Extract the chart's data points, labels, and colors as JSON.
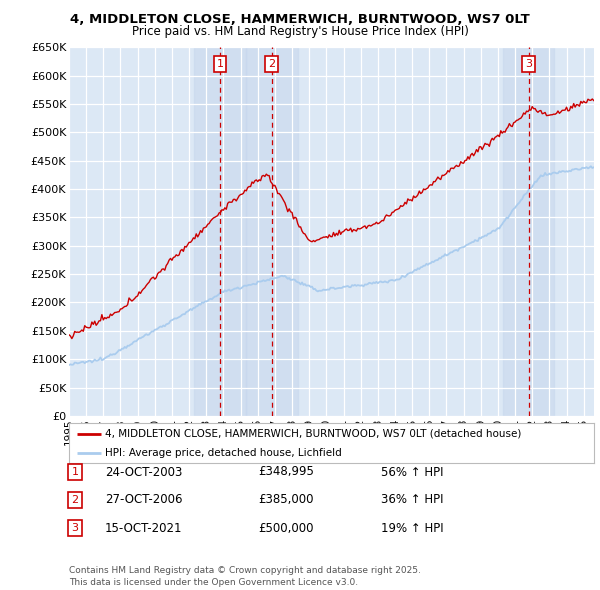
{
  "title_line1": "4, MIDDLETON CLOSE, HAMMERWICH, BURNTWOOD, WS7 0LT",
  "title_line2": "Price paid vs. HM Land Registry's House Price Index (HPI)",
  "ylim": [
    0,
    650000
  ],
  "yticks": [
    0,
    50000,
    100000,
    150000,
    200000,
    250000,
    300000,
    350000,
    400000,
    450000,
    500000,
    550000,
    600000,
    650000
  ],
  "ytick_labels": [
    "£0",
    "£50K",
    "£100K",
    "£150K",
    "£200K",
    "£250K",
    "£300K",
    "£350K",
    "£400K",
    "£450K",
    "£500K",
    "£550K",
    "£600K",
    "£650K"
  ],
  "xlim_start": 1995.0,
  "xlim_end": 2025.6,
  "sale_events": [
    {
      "num": 1,
      "date": "24-OCT-2003",
      "year": 2003.81,
      "price": 348995,
      "label": "£348,995",
      "pct": "56% ↑ HPI"
    },
    {
      "num": 2,
      "date": "27-OCT-2006",
      "year": 2006.82,
      "price": 385000,
      "label": "£385,000",
      "pct": "36% ↑ HPI"
    },
    {
      "num": 3,
      "date": "15-OCT-2021",
      "year": 2021.79,
      "price": 500000,
      "label": "£500,000",
      "pct": "19% ↑ HPI"
    }
  ],
  "legend_line1": "4, MIDDLETON CLOSE, HAMMERWICH, BURNTWOOD, WS7 0LT (detached house)",
  "legend_line2": "HPI: Average price, detached house, Lichfield",
  "footer": "Contains HM Land Registry data © Crown copyright and database right 2025.\nThis data is licensed under the Open Government Licence v3.0.",
  "red_color": "#cc0000",
  "blue_color": "#aaccee",
  "background_plot": "#dce8f5",
  "grid_color": "#ffffff",
  "sale_region_color": "#c8d8ee"
}
